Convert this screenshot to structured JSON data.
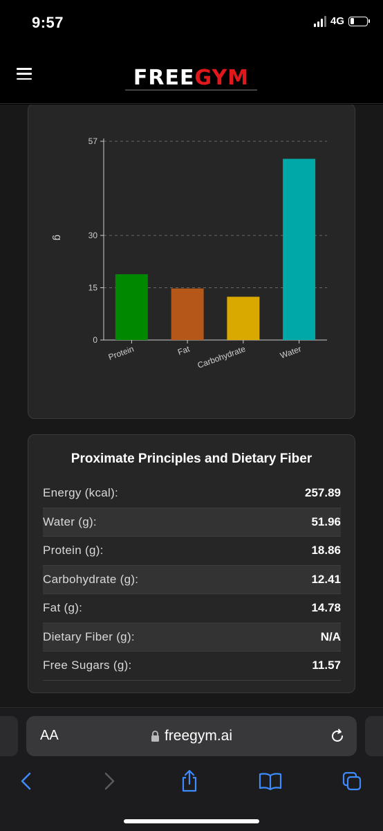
{
  "status_bar": {
    "time": "9:57",
    "network": "4G",
    "battery_level": 0.25
  },
  "header": {
    "logo_free": "FREE",
    "logo_gym": "GYM",
    "brand_red": "#e0181c"
  },
  "chart_data": {
    "type": "bar",
    "categories": [
      "Protein",
      "Fat",
      "Carbohydrate",
      "Water"
    ],
    "values": [
      18.86,
      14.78,
      12.41,
      51.96
    ],
    "colors": [
      "#008800",
      "#b45718",
      "#d9a900",
      "#00a8a8"
    ],
    "ylabel": "g",
    "xlabel": "",
    "yticks": [
      0,
      15,
      30,
      57
    ],
    "ylim": [
      0,
      57
    ],
    "grid": "horizontal dashed"
  },
  "nutrition": {
    "title": "Proximate Principles and Dietary Fiber",
    "rows": [
      {
        "label": "Energy (kcal):",
        "value": "257.89"
      },
      {
        "label": "Water (g):",
        "value": "51.96"
      },
      {
        "label": "Protein (g):",
        "value": "18.86"
      },
      {
        "label": "Carbohydrate (g):",
        "value": "12.41"
      },
      {
        "label": "Fat (g):",
        "value": "14.78"
      },
      {
        "label": "Dietary Fiber (g):",
        "value": "N/A"
      },
      {
        "label": "Free Sugars (g):",
        "value": "11.57"
      }
    ]
  },
  "browser": {
    "aa_label": "AA",
    "url": "freegym.ai",
    "icons": [
      "lock-icon",
      "reload-icon",
      "back-icon",
      "forward-icon",
      "share-icon",
      "bookmarks-icon",
      "tabs-icon"
    ],
    "accent": "#3d8bfd"
  }
}
